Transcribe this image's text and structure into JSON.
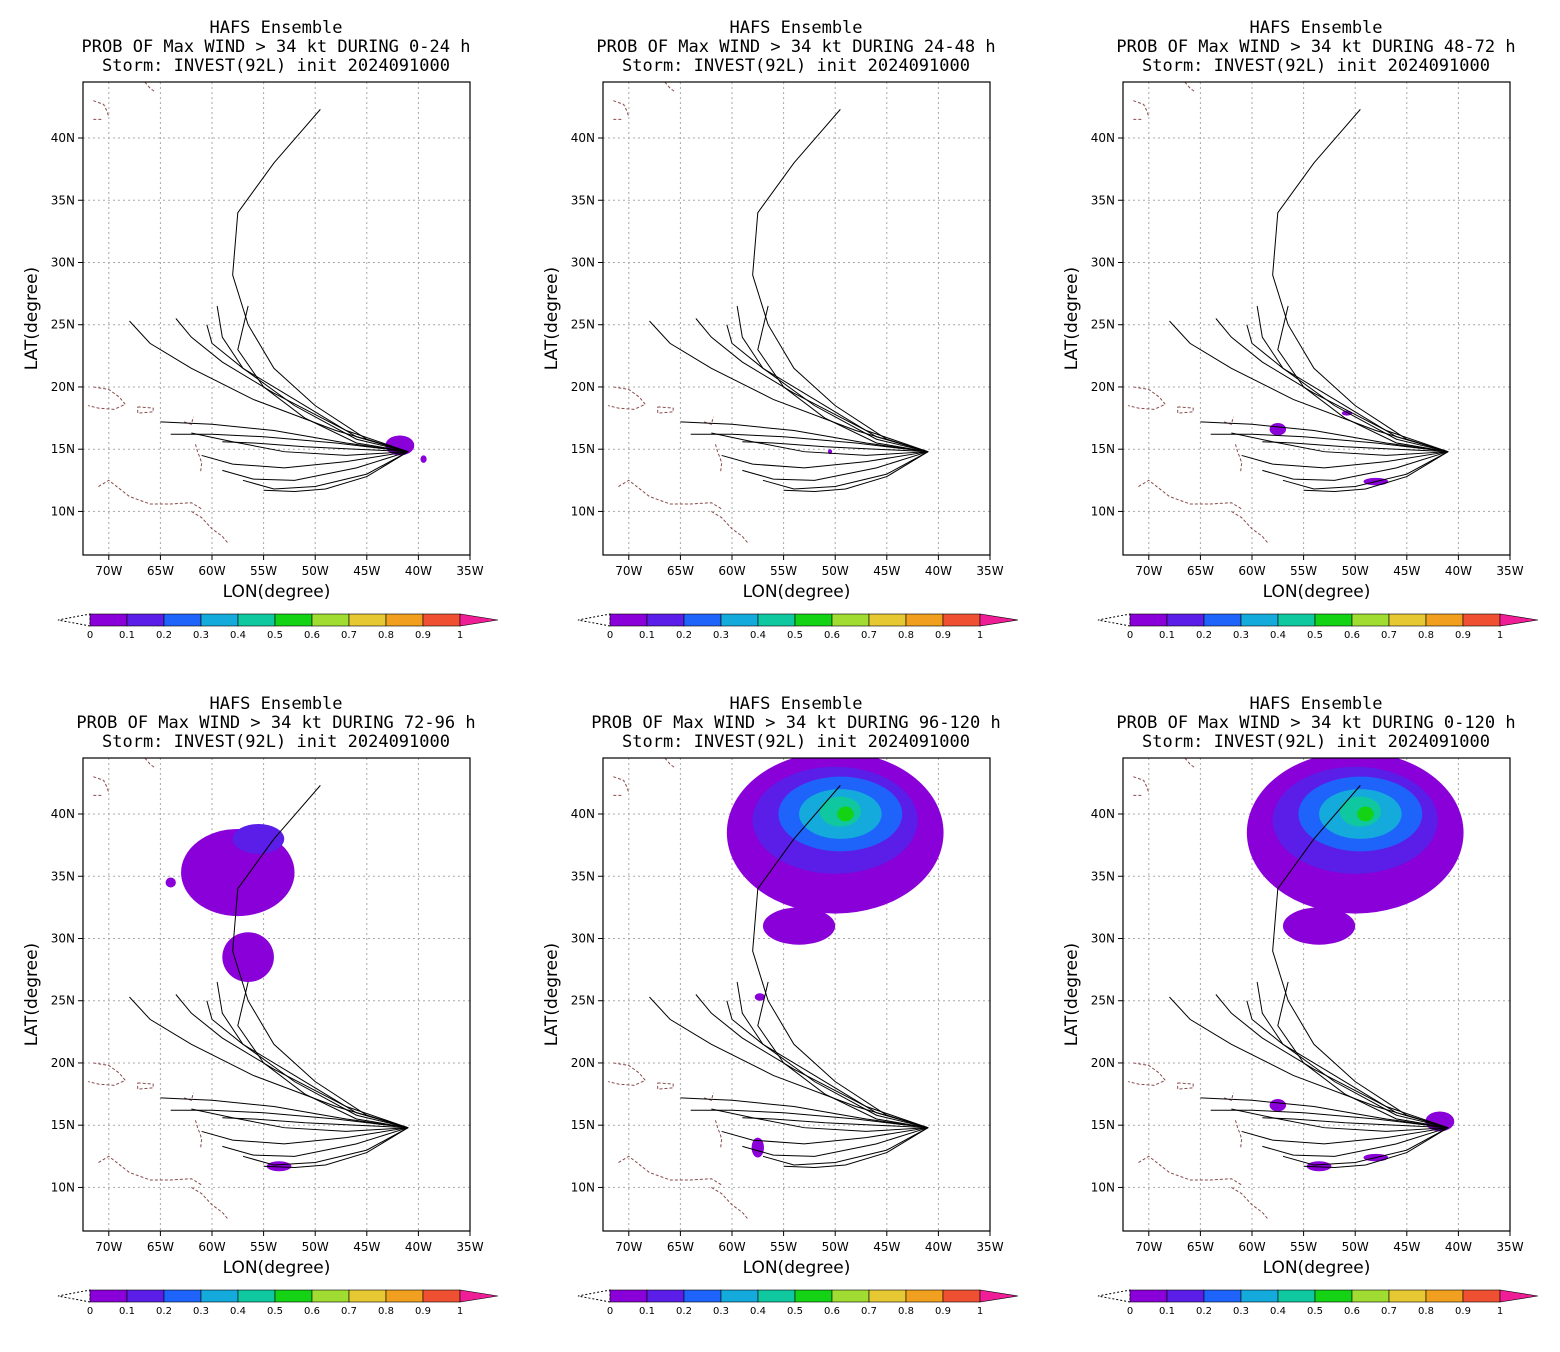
{
  "chart_data": [
    {
      "type": "heatmap",
      "title_lines": [
        "HAFS Ensemble",
        "PROB OF Max WIND > 34 kt DURING  0-24 h",
        "Storm: INVEST(92L) init 2024091000"
      ],
      "xlabel": "LON(degree)",
      "ylabel": "LAT(degree)",
      "xlim": [
        -72.5,
        -35
      ],
      "ylim": [
        6.5,
        44.5
      ],
      "x_ticks": [
        "70W",
        "65W",
        "60W",
        "55W",
        "50W",
        "45W",
        "40W",
        "35W"
      ],
      "y_ticks": [
        "10N",
        "15N",
        "20N",
        "25N",
        "30N",
        "35N",
        "40N"
      ],
      "colorbar": {
        "levels": [
          "0",
          "0.1",
          "0.2",
          "0.3",
          "0.4",
          "0.5",
          "0.6",
          "0.7",
          "0.8",
          "0.9",
          "1"
        ]
      },
      "probability_regions": [
        {
          "lon": -41.8,
          "lat": 15.3,
          "rlon": 1.4,
          "rlat": 0.8,
          "prob": 0.05
        },
        {
          "lon": -39.5,
          "lat": 14.2,
          "rlon": 0.3,
          "rlat": 0.3,
          "prob": 0.05
        }
      ]
    },
    {
      "type": "heatmap",
      "title_lines": [
        "HAFS Ensemble",
        "PROB OF Max WIND > 34 kt DURING 24-48 h",
        "Storm: INVEST(92L) init 2024091000"
      ],
      "xlabel": "LON(degree)",
      "ylabel": "LAT(degree)",
      "xlim": [
        -72.5,
        -35
      ],
      "ylim": [
        6.5,
        44.5
      ],
      "x_ticks": [
        "70W",
        "65W",
        "60W",
        "55W",
        "50W",
        "45W",
        "40W",
        "35W"
      ],
      "y_ticks": [
        "10N",
        "15N",
        "20N",
        "25N",
        "30N",
        "35N",
        "40N"
      ],
      "colorbar": {
        "levels": [
          "0",
          "0.1",
          "0.2",
          "0.3",
          "0.4",
          "0.5",
          "0.6",
          "0.7",
          "0.8",
          "0.9",
          "1"
        ]
      },
      "probability_regions": [
        {
          "lon": -50.5,
          "lat": 14.8,
          "rlon": 0.2,
          "rlat": 0.2,
          "prob": 0.05
        }
      ]
    },
    {
      "type": "heatmap",
      "title_lines": [
        "HAFS Ensemble",
        "PROB OF Max WIND > 34 kt DURING 48-72 h",
        "Storm: INVEST(92L) init 2024091000"
      ],
      "xlabel": "LON(degree)",
      "ylabel": "LAT(degree)",
      "xlim": [
        -72.5,
        -35
      ],
      "ylim": [
        6.5,
        44.5
      ],
      "x_ticks": [
        "70W",
        "65W",
        "60W",
        "55W",
        "50W",
        "45W",
        "40W",
        "35W"
      ],
      "y_ticks": [
        "10N",
        "15N",
        "20N",
        "25N",
        "30N",
        "35N",
        "40N"
      ],
      "colorbar": {
        "levels": [
          "0",
          "0.1",
          "0.2",
          "0.3",
          "0.4",
          "0.5",
          "0.6",
          "0.7",
          "0.8",
          "0.9",
          "1"
        ]
      },
      "probability_regions": [
        {
          "lon": -57.5,
          "lat": 16.6,
          "rlon": 0.8,
          "rlat": 0.5,
          "prob": 0.05
        },
        {
          "lon": -48.0,
          "lat": 12.4,
          "rlon": 1.2,
          "rlat": 0.3,
          "prob": 0.05
        },
        {
          "lon": -50.8,
          "lat": 17.9,
          "rlon": 0.5,
          "rlat": 0.2,
          "prob": 0.05
        }
      ]
    },
    {
      "type": "heatmap",
      "title_lines": [
        "HAFS Ensemble",
        "PROB OF Max WIND > 34 kt DURING 72-96 h",
        "Storm: INVEST(92L) init 2024091000"
      ],
      "xlabel": "LON(degree)",
      "ylabel": "LAT(degree)",
      "xlim": [
        -72.5,
        -35
      ],
      "ylim": [
        6.5,
        44.5
      ],
      "x_ticks": [
        "70W",
        "65W",
        "60W",
        "55W",
        "50W",
        "45W",
        "40W",
        "35W"
      ],
      "y_ticks": [
        "10N",
        "15N",
        "20N",
        "25N",
        "30N",
        "35N",
        "40N"
      ],
      "colorbar": {
        "levels": [
          "0",
          "0.1",
          "0.2",
          "0.3",
          "0.4",
          "0.5",
          "0.6",
          "0.7",
          "0.8",
          "0.9",
          "1"
        ]
      },
      "probability_regions": [
        {
          "lon": -57.5,
          "lat": 35.3,
          "rlon": 5.5,
          "rlat": 3.5,
          "prob": 0.05
        },
        {
          "lon": -55.5,
          "lat": 38.0,
          "rlon": 2.5,
          "rlat": 1.2,
          "prob": 0.15
        },
        {
          "lon": -56.5,
          "lat": 28.5,
          "rlon": 2.5,
          "rlat": 2.0,
          "prob": 0.05
        },
        {
          "lon": -53.5,
          "lat": 11.7,
          "rlon": 1.2,
          "rlat": 0.4,
          "prob": 0.05
        },
        {
          "lon": -64.0,
          "lat": 34.5,
          "rlon": 0.5,
          "rlat": 0.4,
          "prob": 0.05
        }
      ]
    },
    {
      "type": "heatmap",
      "title_lines": [
        "HAFS Ensemble",
        "PROB OF Max WIND > 34 kt DURING 96-120 h",
        "Storm: INVEST(92L) init 2024091000"
      ],
      "xlabel": "LON(degree)",
      "ylabel": "LAT(degree)",
      "xlim": [
        -72.5,
        -35
      ],
      "ylim": [
        6.5,
        44.5
      ],
      "x_ticks": [
        "70W",
        "65W",
        "60W",
        "55W",
        "50W",
        "45W",
        "40W",
        "35W"
      ],
      "y_ticks": [
        "10N",
        "15N",
        "20N",
        "25N",
        "30N",
        "35N",
        "40N"
      ],
      "colorbar": {
        "levels": [
          "0",
          "0.1",
          "0.2",
          "0.3",
          "0.4",
          "0.5",
          "0.6",
          "0.7",
          "0.8",
          "0.9",
          "1"
        ]
      },
      "probability_regions": [
        {
          "lon": -50.0,
          "lat": 38.5,
          "rlon": 10.5,
          "rlat": 6.5,
          "prob": 0.05
        },
        {
          "lon": -50.0,
          "lat": 39.5,
          "rlon": 8.0,
          "rlat": 4.3,
          "prob": 0.15
        },
        {
          "lon": -49.5,
          "lat": 40.0,
          "rlon": 6.0,
          "rlat": 3.0,
          "prob": 0.25
        },
        {
          "lon": -49.5,
          "lat": 40.0,
          "rlon": 4.0,
          "rlat": 2.0,
          "prob": 0.35
        },
        {
          "lon": -49.5,
          "lat": 40.2,
          "rlon": 2.0,
          "rlat": 1.2,
          "prob": 0.45
        },
        {
          "lon": -49.0,
          "lat": 40.0,
          "rlon": 0.8,
          "rlat": 0.6,
          "prob": 0.55
        },
        {
          "lon": -53.5,
          "lat": 31.0,
          "rlon": 3.5,
          "rlat": 1.5,
          "prob": 0.05
        },
        {
          "lon": -57.5,
          "lat": 13.2,
          "rlon": 0.6,
          "rlat": 0.8,
          "prob": 0.05
        },
        {
          "lon": -57.3,
          "lat": 25.3,
          "rlon": 0.5,
          "rlat": 0.3,
          "prob": 0.05
        }
      ]
    },
    {
      "type": "heatmap",
      "title_lines": [
        "HAFS Ensemble",
        "PROB OF Max WIND > 34 kt DURING 0-120 h",
        "Storm: INVEST(92L) init 2024091000"
      ],
      "xlabel": "LON(degree)",
      "ylabel": "LAT(degree)",
      "xlim": [
        -72.5,
        -35
      ],
      "ylim": [
        6.5,
        44.5
      ],
      "x_ticks": [
        "70W",
        "65W",
        "60W",
        "55W",
        "50W",
        "45W",
        "40W",
        "35W"
      ],
      "y_ticks": [
        "10N",
        "15N",
        "20N",
        "25N",
        "30N",
        "35N",
        "40N"
      ],
      "colorbar": {
        "levels": [
          "0",
          "0.1",
          "0.2",
          "0.3",
          "0.4",
          "0.5",
          "0.6",
          "0.7",
          "0.8",
          "0.9",
          "1"
        ]
      },
      "probability_regions": [
        {
          "lon": -50.0,
          "lat": 38.5,
          "rlon": 10.5,
          "rlat": 6.5,
          "prob": 0.05
        },
        {
          "lon": -50.0,
          "lat": 39.5,
          "rlon": 8.0,
          "rlat": 4.3,
          "prob": 0.15
        },
        {
          "lon": -49.5,
          "lat": 40.0,
          "rlon": 6.0,
          "rlat": 3.0,
          "prob": 0.25
        },
        {
          "lon": -49.5,
          "lat": 40.0,
          "rlon": 4.0,
          "rlat": 2.0,
          "prob": 0.35
        },
        {
          "lon": -49.5,
          "lat": 40.2,
          "rlon": 2.0,
          "rlat": 1.2,
          "prob": 0.45
        },
        {
          "lon": -49.0,
          "lat": 40.0,
          "rlon": 0.8,
          "rlat": 0.6,
          "prob": 0.55
        },
        {
          "lon": -53.5,
          "lat": 31.0,
          "rlon": 3.5,
          "rlat": 1.5,
          "prob": 0.05
        },
        {
          "lon": -41.8,
          "lat": 15.3,
          "rlon": 1.4,
          "rlat": 0.8,
          "prob": 0.05
        },
        {
          "lon": -57.5,
          "lat": 16.6,
          "rlon": 0.8,
          "rlat": 0.5,
          "prob": 0.05
        },
        {
          "lon": -53.5,
          "lat": 11.7,
          "rlon": 1.2,
          "rlat": 0.4,
          "prob": 0.05
        },
        {
          "lon": -48.0,
          "lat": 12.4,
          "rlon": 1.2,
          "rlat": 0.3,
          "prob": 0.05
        }
      ]
    }
  ],
  "ensemble_tracks": [
    [
      [
        -41,
        14.8
      ],
      [
        -45,
        15.8
      ],
      [
        -50,
        18.5
      ],
      [
        -54,
        21.5
      ],
      [
        -56.5,
        25
      ],
      [
        -58,
        29
      ],
      [
        -57.5,
        34
      ],
      [
        -54,
        38
      ],
      [
        -49.5,
        42.3
      ]
    ],
    [
      [
        -41,
        14.8
      ],
      [
        -46,
        15.5
      ],
      [
        -51,
        17.5
      ],
      [
        -55,
        20
      ],
      [
        -57.5,
        23
      ],
      [
        -56.5,
        26.5
      ]
    ],
    [
      [
        -41,
        14.8
      ],
      [
        -46,
        15.8
      ],
      [
        -52,
        18.5
      ],
      [
        -57,
        21.5
      ],
      [
        -59,
        24
      ],
      [
        -59.5,
        26.5
      ]
    ],
    [
      [
        -41,
        14.8
      ],
      [
        -46,
        16
      ],
      [
        -52,
        19
      ],
      [
        -57,
        21.5
      ],
      [
        -60,
        23.5
      ],
      [
        -60.5,
        25
      ]
    ],
    [
      [
        -41,
        14.8
      ],
      [
        -47,
        16.5
      ],
      [
        -54,
        19.5
      ],
      [
        -59,
        22
      ],
      [
        -62,
        24
      ],
      [
        -63.5,
        25.5
      ]
    ],
    [
      [
        -41,
        14.8
      ],
      [
        -48,
        16.5
      ],
      [
        -56,
        19
      ],
      [
        -62,
        21.5
      ],
      [
        -66,
        23.5
      ],
      [
        -68,
        25.3
      ]
    ],
    [
      [
        -41,
        14.8
      ],
      [
        -47,
        15.5
      ],
      [
        -54,
        16.5
      ],
      [
        -60,
        17
      ],
      [
        -65,
        17.2
      ]
    ],
    [
      [
        -41,
        14.8
      ],
      [
        -48,
        15.5
      ],
      [
        -55,
        16
      ],
      [
        -60,
        16.2
      ],
      [
        -64,
        16.2
      ]
    ],
    [
      [
        -41,
        14.8
      ],
      [
        -47,
        14.5
      ],
      [
        -53,
        14.8
      ],
      [
        -58,
        15.6
      ],
      [
        -62,
        16.3
      ]
    ],
    [
      [
        -41,
        14.8
      ],
      [
        -47,
        14
      ],
      [
        -53,
        13.5
      ],
      [
        -58,
        13.8
      ],
      [
        -61,
        14.5
      ]
    ],
    [
      [
        -41,
        14.8
      ],
      [
        -46,
        13.5
      ],
      [
        -52,
        12.5
      ],
      [
        -56,
        12.6
      ],
      [
        -59,
        13.3
      ]
    ],
    [
      [
        -41,
        14.8
      ],
      [
        -45,
        13
      ],
      [
        -50,
        12
      ],
      [
        -54,
        11.8
      ],
      [
        -57,
        12.5
      ]
    ],
    [
      [
        -41,
        14.8
      ],
      [
        -45,
        12.8
      ],
      [
        -49,
        11.8
      ],
      [
        -52,
        11.6
      ],
      [
        -55,
        11.7
      ]
    ],
    [
      [
        -41,
        14.8
      ],
      [
        -46,
        15
      ],
      [
        -51,
        15.2
      ],
      [
        -56,
        15.5
      ],
      [
        -59,
        15.6
      ]
    ]
  ],
  "coastlines": [
    [
      [
        -71.5,
        20
      ],
      [
        -70,
        19.8
      ],
      [
        -69,
        19.2
      ],
      [
        -68.4,
        18.6
      ],
      [
        -69.5,
        18.2
      ],
      [
        -71,
        18.3
      ],
      [
        -72,
        18.5
      ]
    ],
    [
      [
        -67.2,
        18.4
      ],
      [
        -65.7,
        18.3
      ],
      [
        -65.7,
        18
      ],
      [
        -67.2,
        17.9
      ],
      [
        -67.2,
        18.4
      ]
    ],
    [
      [
        -71,
        12
      ],
      [
        -70,
        12.5
      ],
      [
        -68,
        11.2
      ],
      [
        -66,
        10.6
      ],
      [
        -64,
        10.6
      ],
      [
        -62,
        10.7
      ],
      [
        -61,
        10.2
      ]
    ],
    [
      [
        -62,
        10
      ],
      [
        -61,
        9.5
      ],
      [
        -60,
        8.6
      ],
      [
        -59,
        8
      ],
      [
        -58.5,
        7.5
      ]
    ],
    [
      [
        -61.6,
        15.4
      ],
      [
        -61.4,
        14.8
      ],
      [
        -61.2,
        14.4
      ],
      [
        -61,
        13.9
      ],
      [
        -61.1,
        13.2
      ]
    ],
    [
      [
        -62.7,
        17.2
      ],
      [
        -62,
        17
      ],
      [
        -61.8,
        17.6
      ]
    ],
    [
      [
        -71.5,
        43
      ],
      [
        -70.5,
        42.7
      ],
      [
        -70.2,
        42.2
      ],
      [
        -70,
        41.7
      ]
    ],
    [
      [
        -71.5,
        41.5
      ],
      [
        -70.7,
        41.5
      ]
    ],
    [
      [
        -66.5,
        44.5
      ],
      [
        -66,
        44
      ],
      [
        -65.5,
        43.7
      ]
    ]
  ],
  "colors": {
    "scale": [
      "#8a00d8",
      "#5a1ee8",
      "#1e64fa",
      "#14aadc",
      "#10c8a0",
      "#14d214",
      "#a0dc32",
      "#e6c832",
      "#f0a01e",
      "#f05032",
      "#f01e96"
    ]
  }
}
